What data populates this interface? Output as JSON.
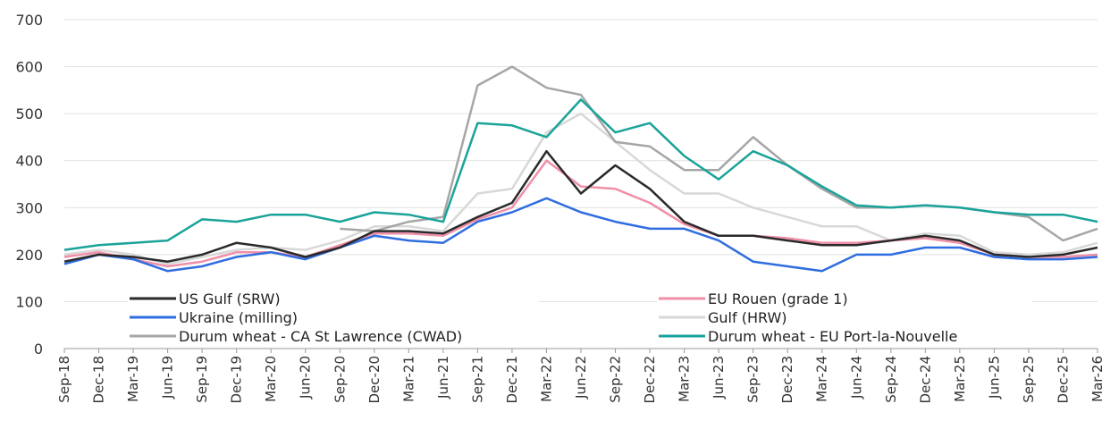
{
  "chart_data": {
    "type": "line",
    "categories": [
      "Sep-18",
      "Dec-18",
      "Mar-19",
      "Jun-19",
      "Sep-19",
      "Dec-19",
      "Mar-20",
      "Jun-20",
      "Sep-20",
      "Dec-20",
      "Mar-21",
      "Jun-21",
      "Sep-21",
      "Dec-21",
      "Mar-22",
      "Jun-22",
      "Sep-22",
      "Dec-22",
      "Mar-23",
      "Jun-23",
      "Sep-23",
      "Dec-23",
      "Mar-24",
      "Jun-24",
      "Sep-24",
      "Dec-24",
      "Mar-25",
      "Jun-25",
      "Sep-25",
      "Dec-25",
      "Mar-26"
    ],
    "series": [
      {
        "name": "US Gulf (SRW)",
        "color": "#2a2a2a",
        "values": [
          185,
          200,
          195,
          185,
          200,
          225,
          215,
          195,
          215,
          250,
          250,
          245,
          280,
          310,
          420,
          330,
          390,
          340,
          270,
          240,
          240,
          230,
          220,
          220,
          230,
          240,
          230,
          200,
          195,
          200,
          215
        ]
      },
      {
        "name": "EU Rouen (grade 1)",
        "color": "#f08fa8",
        "values": [
          195,
          205,
          190,
          175,
          185,
          205,
          205,
          195,
          220,
          245,
          245,
          240,
          275,
          300,
          400,
          345,
          340,
          310,
          265,
          240,
          240,
          235,
          225,
          225,
          230,
          235,
          225,
          200,
          195,
          195,
          200
        ]
      },
      {
        "name": "Ukraine (milling)",
        "color": "#2f6de0",
        "values": [
          180,
          200,
          190,
          165,
          175,
          195,
          205,
          190,
          215,
          240,
          230,
          225,
          270,
          290,
          320,
          290,
          270,
          255,
          255,
          230,
          185,
          175,
          165,
          200,
          200,
          215,
          215,
          195,
          190,
          190,
          195
        ]
      },
      {
        "name": "Gulf (HRW)",
        "color": "#d8d8d8",
        "values": [
          200,
          210,
          200,
          180,
          195,
          210,
          215,
          210,
          230,
          260,
          260,
          250,
          330,
          340,
          460,
          500,
          440,
          380,
          330,
          330,
          300,
          280,
          260,
          260,
          230,
          245,
          240,
          205,
          200,
          205,
          225
        ]
      },
      {
        "name": "Durum wheat - CA St Lawrence (CWAD)",
        "color": "#a6a6a6",
        "values": [
          null,
          null,
          null,
          null,
          null,
          null,
          null,
          null,
          255,
          250,
          270,
          280,
          560,
          600,
          555,
          540,
          440,
          430,
          380,
          380,
          450,
          390,
          340,
          300,
          300,
          305,
          300,
          290,
          280,
          230,
          255
        ]
      },
      {
        "name": "Durum wheat - EU Port-la-Nouvelle",
        "color": "#1aa39a",
        "values": [
          210,
          220,
          225,
          230,
          275,
          270,
          285,
          285,
          270,
          290,
          285,
          270,
          480,
          475,
          450,
          530,
          460,
          480,
          410,
          360,
          420,
          390,
          345,
          305,
          300,
          305,
          300,
          290,
          285,
          285,
          270
        ]
      }
    ],
    "ylim": [
      0,
      700
    ],
    "yticks": [
      0,
      100,
      200,
      300,
      400,
      500,
      600,
      700
    ],
    "grid": true
  }
}
